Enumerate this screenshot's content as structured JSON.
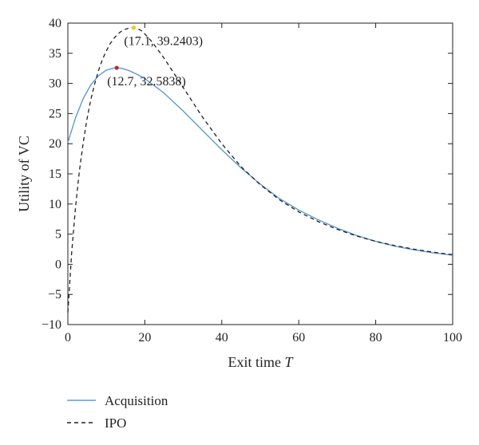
{
  "chart_data": {
    "type": "line",
    "xlabel": "Exit time",
    "xlabel_var": "T",
    "ylabel": "Utility of VC",
    "xlim": [
      0,
      100
    ],
    "ylim": [
      -10,
      40
    ],
    "x_ticks": [
      "0",
      "20",
      "40",
      "60",
      "80",
      "100"
    ],
    "y_ticks": [
      "−10",
      "−5",
      "0",
      "5",
      "10",
      "15",
      "20",
      "25",
      "30",
      "35",
      "40"
    ],
    "grid": false,
    "legend_position": "bottom-left",
    "series": [
      {
        "name": "Acquisition",
        "color": "#5b9bd5",
        "style": "solid",
        "x": [
          0,
          2,
          4,
          6,
          8,
          10,
          12,
          12.7,
          14,
          16,
          18,
          20,
          25,
          30,
          35,
          40,
          45,
          50,
          55,
          60,
          65,
          70,
          75,
          80,
          85,
          90,
          95,
          100
        ],
        "y": [
          20.2,
          24.3,
          27.5,
          29.8,
          31.3,
          32.2,
          32.55,
          32.58,
          32.5,
          32.1,
          31.5,
          30.8,
          28.4,
          25.4,
          22.2,
          19.0,
          16.0,
          13.3,
          10.9,
          9.0,
          7.4,
          6.0,
          4.8,
          3.8,
          3.0,
          2.4,
          1.9,
          1.5
        ]
      },
      {
        "name": "IPO",
        "color": "#231f20",
        "style": "dashed",
        "x": [
          0,
          1,
          2,
          3,
          4,
          5,
          6,
          7,
          8,
          9,
          10,
          11,
          12,
          13,
          14,
          15,
          16,
          17.1,
          18,
          19,
          20,
          22,
          25,
          30,
          35,
          40,
          45,
          50,
          55,
          60,
          65,
          70,
          75,
          80,
          85,
          90,
          95,
          100
        ],
        "y": [
          -8.0,
          2.0,
          9.5,
          15.5,
          20.2,
          24.2,
          27.4,
          30.0,
          32.2,
          34.0,
          35.4,
          36.6,
          37.5,
          38.2,
          38.7,
          39.0,
          39.2,
          39.24,
          39.1,
          38.8,
          38.2,
          36.8,
          34.2,
          29.3,
          24.4,
          20.0,
          16.2,
          13.2,
          10.7,
          8.7,
          7.1,
          5.8,
          4.7,
          3.8,
          3.1,
          2.5,
          2.0,
          1.6
        ]
      }
    ],
    "annotations": [
      {
        "text": "(17.1, 39.2403)",
        "x": 17.1,
        "y": 39.2403,
        "marker_color": "#f5c518"
      },
      {
        "text": "(12.7, 32.5838)",
        "x": 12.7,
        "y": 32.5838,
        "marker_color": "#c0272d"
      }
    ]
  }
}
